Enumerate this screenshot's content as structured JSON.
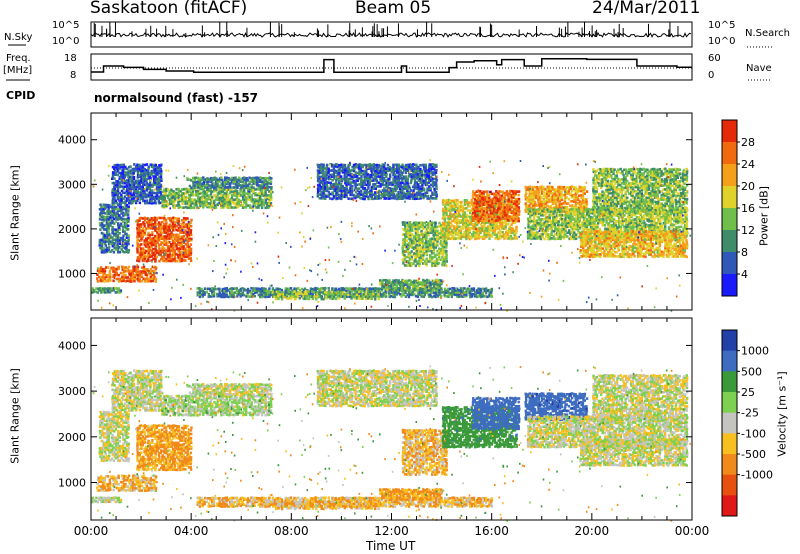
{
  "header": {
    "station": "Saskatoon (fitACF)",
    "beam": "Beam 05",
    "date": "24/Mar/2011"
  },
  "side_labels": {
    "nsky": "N.Sky",
    "nsearch": "N.Search",
    "freq_line1": "Freq.",
    "freq_line2": "[MHz]",
    "nave": "Nave",
    "cpid": "CPID"
  },
  "cpid_text": "normalsound (fast) -157",
  "noise_panel": {
    "left_ticks": [
      "10^5",
      "10^0"
    ],
    "right_ticks": [
      "10^5",
      "10^0"
    ]
  },
  "freq_panel": {
    "left_ticks": [
      "18",
      "8"
    ],
    "right_ticks": [
      "60",
      "0"
    ],
    "freq_steps": [
      {
        "t": 0.0,
        "f": 11.0
      },
      {
        "t": 0.5,
        "f": 14.0
      },
      {
        "t": 1.3,
        "f": 13.3
      },
      {
        "t": 2.1,
        "f": 12.3
      },
      {
        "t": 3.0,
        "f": 11.5
      },
      {
        "t": 4.1,
        "f": 10.9
      },
      {
        "t": 7.2,
        "f": 10.9
      },
      {
        "t": 8.8,
        "f": 10.9
      },
      {
        "t": 9.3,
        "f": 17.2
      },
      {
        "t": 9.7,
        "f": 10.9
      },
      {
        "t": 12.2,
        "f": 10.9
      },
      {
        "t": 12.4,
        "f": 14.0
      },
      {
        "t": 12.6,
        "f": 10.9
      },
      {
        "t": 14.0,
        "f": 10.9
      },
      {
        "t": 14.3,
        "f": 13.2
      },
      {
        "t": 14.6,
        "f": 16.0
      },
      {
        "t": 15.3,
        "f": 16.6
      },
      {
        "t": 16.2,
        "f": 14.6
      },
      {
        "t": 16.4,
        "f": 17.2
      },
      {
        "t": 17.3,
        "f": 14.0
      },
      {
        "t": 18.0,
        "f": 17.6
      },
      {
        "t": 19.8,
        "f": 17.3
      },
      {
        "t": 21.8,
        "f": 14.0
      },
      {
        "t": 23.4,
        "f": 13.4
      },
      {
        "t": 24.0,
        "f": 13.4
      }
    ],
    "nave_level": 13.0
  },
  "range_panels": [
    {
      "name": "power",
      "ylabel": "Slant Range [km]",
      "yticks": [
        1000,
        2000,
        3000,
        4000
      ],
      "ylim": [
        180,
        4600
      ],
      "scale_label": "Power [dB]",
      "scale_ticks": [
        "4",
        "8",
        "12",
        "16",
        "20",
        "24",
        "28"
      ],
      "scale_colors": [
        "#1a1aff",
        "#2f58b8",
        "#3f8c6a",
        "#6fbf4a",
        "#e0d22a",
        "#f5a01a",
        "#f26a10",
        "#e42a08"
      ]
    },
    {
      "name": "velocity",
      "ylabel": "Slant Range [km]",
      "yticks": [
        1000,
        2000,
        3000,
        4000
      ],
      "ylim": [
        180,
        4600
      ],
      "scale_label": "Velocity [m s⁻¹]",
      "scale_ticks": [
        "1000",
        "500",
        "25",
        "-25",
        "-100",
        "-500",
        "-1000"
      ],
      "scale_colors": [
        "#2241a8",
        "#3d6cc0",
        "#3a9a3a",
        "#7ed050",
        "#c4c4c0",
        "#f7c020",
        "#f08a1a",
        "#e85010",
        "#e01818"
      ]
    }
  ],
  "xaxis": {
    "label": "Time UT",
    "ticks": [
      "00:00",
      "04:00",
      "08:00",
      "12:00",
      "16:00",
      "20:00",
      "00:00"
    ]
  },
  "chart_data": {
    "type": "heatmap",
    "title": "Saskatoon (fitACF) Beam 05 24/Mar/2011",
    "xlabel": "Time UT",
    "ylabel": "Slant Range [km]",
    "x_range_hours": [
      0,
      24
    ],
    "ylim": [
      180,
      4600
    ],
    "regions": [
      {
        "t0": 0.0,
        "t1": 1.2,
        "r0": 600,
        "r1": 720,
        "power": 10,
        "vel": 0
      },
      {
        "t0": 0.2,
        "t1": 2.6,
        "r0": 850,
        "r1": 1200,
        "power": 26,
        "vel": -100
      },
      {
        "t0": 1.8,
        "t1": 4.0,
        "r0": 1300,
        "r1": 2300,
        "power": 27,
        "vel": -150
      },
      {
        "t0": 0.3,
        "t1": 1.5,
        "r0": 1500,
        "r1": 2600,
        "power": 8,
        "vel": 0
      },
      {
        "t0": 0.8,
        "t1": 2.8,
        "r0": 2600,
        "r1": 3500,
        "power": 6,
        "vel": 0
      },
      {
        "t0": 2.8,
        "t1": 7.2,
        "r0": 2500,
        "r1": 2950,
        "power": 13,
        "vel": 50
      },
      {
        "t0": 3.8,
        "t1": 7.2,
        "r0": 2950,
        "r1": 3200,
        "power": 9,
        "vel": 0
      },
      {
        "t0": 4.2,
        "t1": 16.0,
        "r0": 500,
        "r1": 720,
        "power": 9,
        "vel": -100
      },
      {
        "t0": 7.2,
        "t1": 11.5,
        "r0": 450,
        "r1": 650,
        "power": 14,
        "vel": -100
      },
      {
        "t0": 11.5,
        "t1": 14.0,
        "r0": 650,
        "r1": 900,
        "power": 12,
        "vel": -150
      },
      {
        "t0": 9.0,
        "t1": 13.8,
        "r0": 2700,
        "r1": 3500,
        "power": 7,
        "vel": 0
      },
      {
        "t0": 12.4,
        "t1": 14.2,
        "r0": 1200,
        "r1": 2200,
        "power": 14,
        "vel": -100
      },
      {
        "t0": 14.0,
        "t1": 17.0,
        "r0": 1800,
        "r1": 2700,
        "power": 18,
        "vel": 300
      },
      {
        "t0": 15.2,
        "t1": 17.1,
        "r0": 2200,
        "r1": 2900,
        "power": 26,
        "vel": 600
      },
      {
        "t0": 17.3,
        "t1": 19.8,
        "r0": 2400,
        "r1": 3000,
        "power": 22,
        "vel": 700
      },
      {
        "t0": 17.4,
        "t1": 23.8,
        "r0": 1800,
        "r1": 2500,
        "power": 15,
        "vel": 0
      },
      {
        "t0": 19.5,
        "t1": 23.8,
        "r0": 1400,
        "r1": 2000,
        "power": 20,
        "vel": 0
      },
      {
        "t0": 20.0,
        "t1": 23.8,
        "r0": 2400,
        "r1": 3400,
        "power": 14,
        "vel": 0
      }
    ]
  }
}
